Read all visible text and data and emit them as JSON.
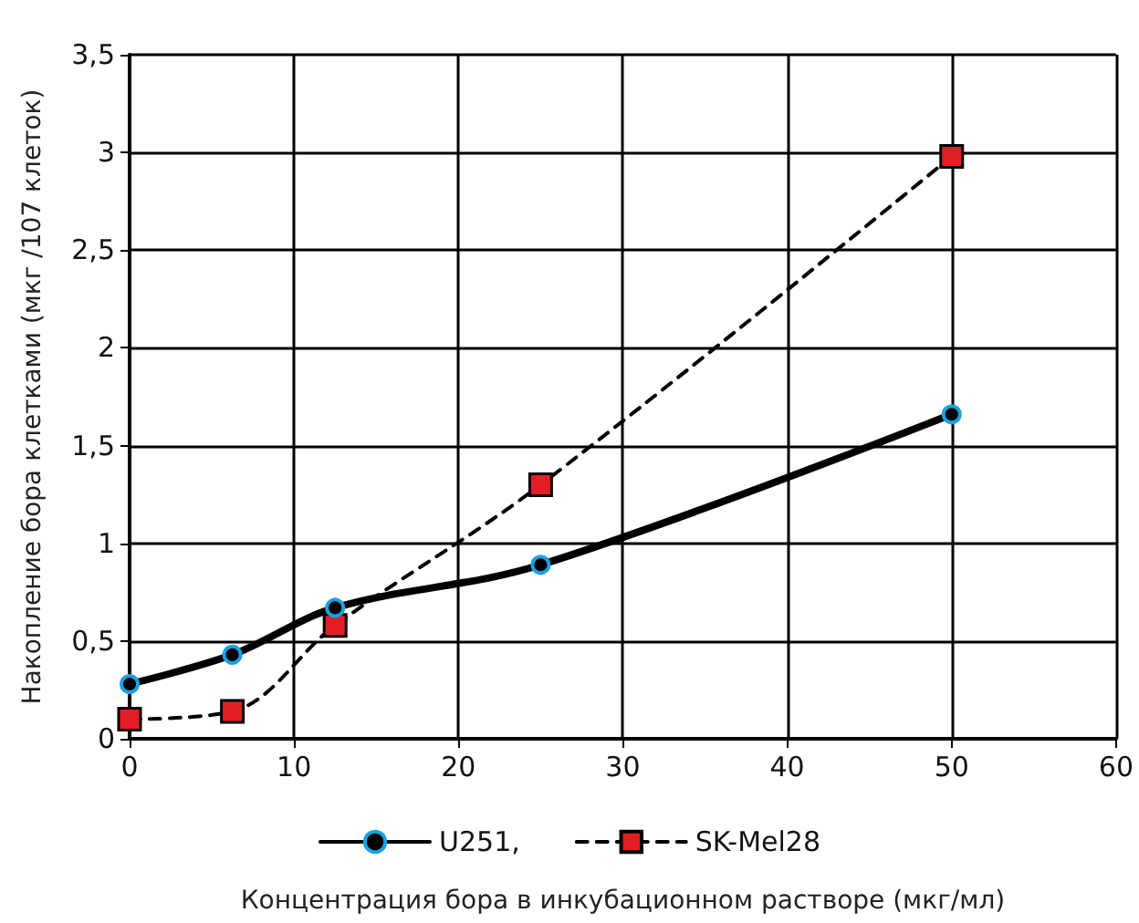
{
  "chart_data": {
    "type": "line",
    "xlabel": "Концентрация бора в инкубационном растворе (мкг/мл)",
    "ylabel": "Накопление бора клетками (мкг /107 клеток)",
    "x": [
      0,
      6.25,
      12.5,
      25,
      50
    ],
    "series": [
      {
        "name": "U251,",
        "color": "#000000",
        "marker": "circle",
        "line_style": "solid",
        "values": [
          0.28,
          0.43,
          0.67,
          0.89,
          1.66
        ]
      },
      {
        "name": "SK-Mel28",
        "color": "#000000",
        "marker": "square",
        "line_style": "dashed",
        "values": [
          0.1,
          0.14,
          0.58,
          1.3,
          2.98
        ]
      }
    ],
    "xlim": [
      0,
      60
    ],
    "xticks": [
      0,
      10,
      20,
      30,
      40,
      50,
      60
    ],
    "ylim": [
      0,
      3.5
    ],
    "yticks": [
      0,
      {
        "value": 0.5,
        "label": "0,5"
      },
      1,
      {
        "value": 1.5,
        "label": "1,5"
      },
      2,
      {
        "value": 2.5,
        "label": "2,5"
      },
      3,
      {
        "value": 3.5,
        "label": "3,5"
      }
    ],
    "grid": true,
    "legend": "bottom"
  }
}
